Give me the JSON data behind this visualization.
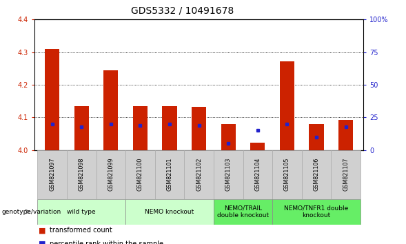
{
  "title": "GDS5332 / 10491678",
  "samples": [
    "GSM821097",
    "GSM821098",
    "GSM821099",
    "GSM821100",
    "GSM821101",
    "GSM821102",
    "GSM821103",
    "GSM821104",
    "GSM821105",
    "GSM821106",
    "GSM821107"
  ],
  "transformed_counts": [
    4.31,
    4.135,
    4.245,
    4.135,
    4.135,
    4.133,
    4.079,
    4.022,
    4.272,
    4.079,
    4.092
  ],
  "percentile_ranks": [
    20,
    18,
    20,
    19,
    20,
    19,
    5,
    15,
    20,
    10,
    18
  ],
  "ymin": 4.0,
  "ymax": 4.4,
  "yticks": [
    4.0,
    4.1,
    4.2,
    4.3,
    4.4
  ],
  "right_yticks": [
    0,
    25,
    50,
    75,
    100
  ],
  "right_yticklabels": [
    "0",
    "25",
    "50",
    "75",
    "100%"
  ],
  "groups": [
    {
      "label": "wild type",
      "start": 0,
      "end": 2,
      "color": "#ccffcc"
    },
    {
      "label": "NEMO knockout",
      "start": 3,
      "end": 5,
      "color": "#ccffcc"
    },
    {
      "label": "NEMO/TRAIL\ndouble knockout",
      "start": 6,
      "end": 7,
      "color": "#66ee66"
    },
    {
      "label": "NEMO/TNFR1 double\nknockout",
      "start": 8,
      "end": 10,
      "color": "#66ee66"
    }
  ],
  "bar_color": "#cc2200",
  "blue_color": "#2222cc",
  "bar_width": 0.5,
  "legend_red_label": "transformed count",
  "legend_blue_label": "percentile rank within the sample",
  "genotype_label": "genotype/variation",
  "tick_label_color_left": "#cc2200",
  "tick_label_color_right": "#2222cc",
  "title_fontsize": 10,
  "tick_fontsize": 7,
  "label_fontsize": 5.8,
  "group_fontsize": 6.5,
  "legend_fontsize": 7
}
